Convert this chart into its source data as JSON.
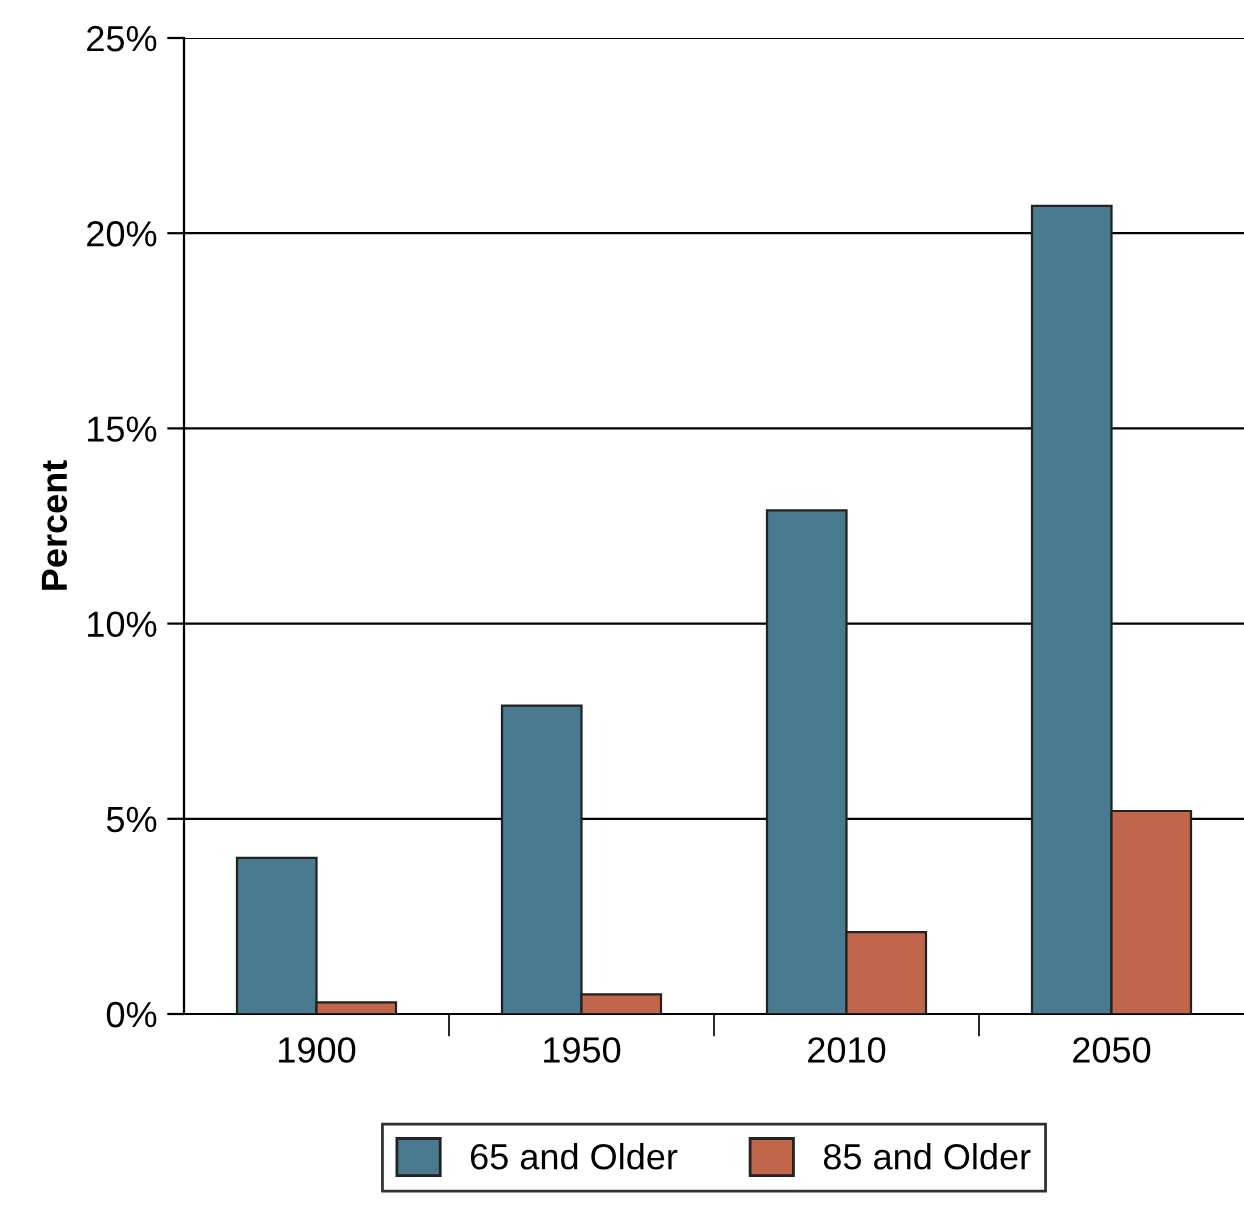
{
  "chart_data": {
    "type": "bar",
    "ylabel": "Percent",
    "categories": [
      "1900",
      "1950",
      "2010",
      "2050"
    ],
    "series": [
      {
        "name": "65 and Older",
        "color": "#4a7a90",
        "values": [
          4.0,
          7.9,
          12.9,
          20.7
        ]
      },
      {
        "name": "85 and Older",
        "color": "#c0664a",
        "values": [
          0.3,
          0.5,
          2.1,
          5.2
        ]
      }
    ],
    "ylim": [
      0,
      25
    ],
    "yticks": [
      {
        "value": 0,
        "label": "0%"
      },
      {
        "value": 5,
        "label": "5%"
      },
      {
        "value": 10,
        "label": "10%"
      },
      {
        "value": 15,
        "label": "15%"
      },
      {
        "value": 20,
        "label": "20%"
      },
      {
        "value": 25,
        "label": "25%"
      }
    ],
    "grid": "y",
    "legend": "bottom"
  }
}
